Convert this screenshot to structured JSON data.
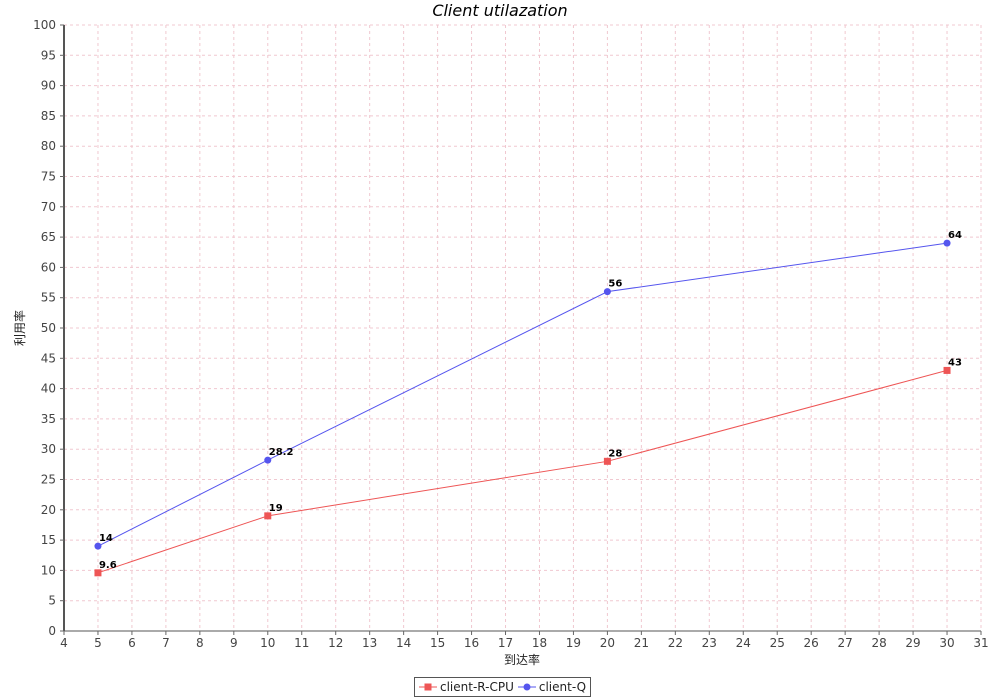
{
  "chart_data": {
    "type": "line",
    "title": "Client utilazation",
    "xlabel": "到达率",
    "ylabel": "利用率",
    "xlim": [
      4,
      31
    ],
    "ylim": [
      0,
      100
    ],
    "x_ticks": [
      4,
      5,
      6,
      7,
      8,
      9,
      10,
      11,
      12,
      13,
      14,
      15,
      16,
      17,
      18,
      19,
      20,
      21,
      22,
      23,
      24,
      25,
      26,
      27,
      28,
      29,
      30,
      31
    ],
    "y_ticks": [
      0,
      5,
      10,
      15,
      20,
      25,
      30,
      35,
      40,
      45,
      50,
      55,
      60,
      65,
      70,
      75,
      80,
      85,
      90,
      95,
      100
    ],
    "grid": true,
    "legend_position": "bottom",
    "series": [
      {
        "name": "client-R-CPU",
        "color": "#ee5555",
        "marker": "square",
        "x": [
          5,
          10,
          20,
          30
        ],
        "y": [
          9.6,
          19,
          28,
          43
        ],
        "labels": [
          "9.6",
          "19",
          "28",
          "43"
        ]
      },
      {
        "name": "client-Q",
        "color": "#5555ee",
        "marker": "circle",
        "x": [
          5,
          10,
          20,
          30
        ],
        "y": [
          14,
          28.2,
          56,
          64
        ],
        "labels": [
          "14",
          "28.2",
          "56",
          "64"
        ]
      }
    ]
  }
}
